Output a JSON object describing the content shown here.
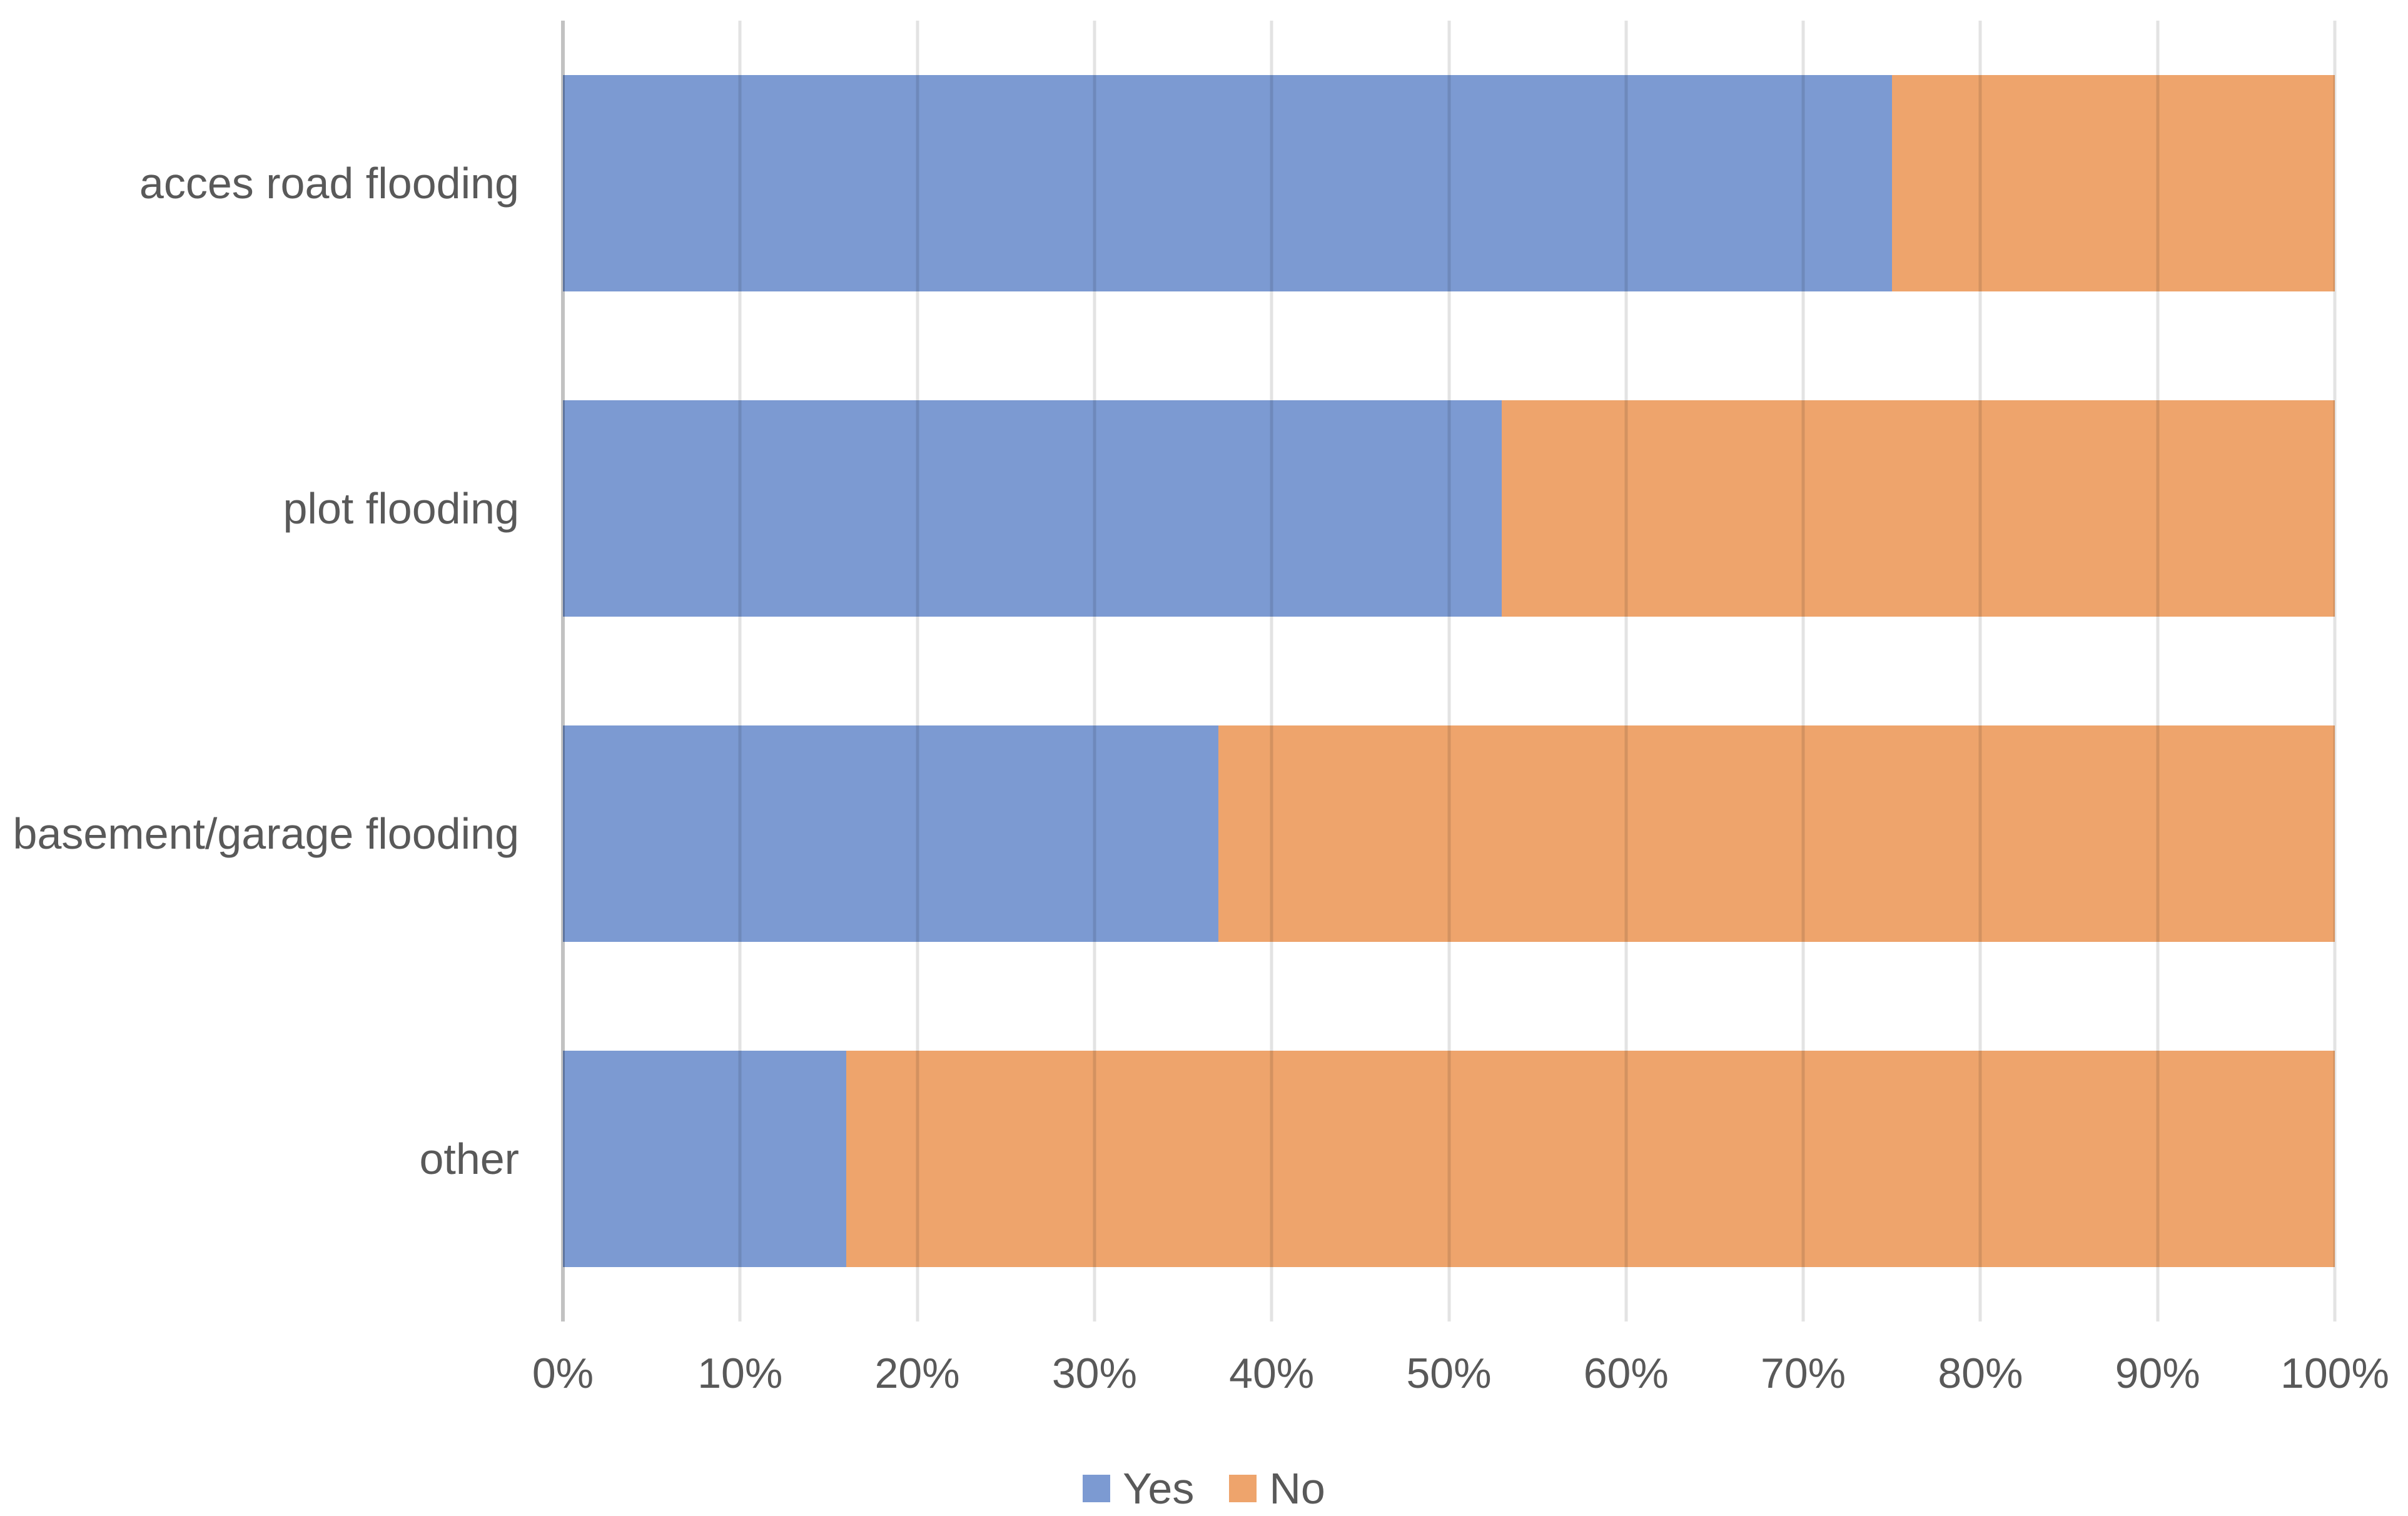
{
  "chart_data": {
    "type": "bar",
    "orientation": "horizontal",
    "stacked": true,
    "title": "",
    "xlabel": "",
    "ylabel": "",
    "unit": "percent",
    "categories": [
      "acces road flooding",
      "plot flooding",
      "basement/garage flooding",
      "other"
    ],
    "series": [
      {
        "name": "Yes",
        "color": "#7C9AD2",
        "values": [
          75,
          53,
          37,
          16
        ]
      },
      {
        "name": "No",
        "color": "#EEA46C",
        "values": [
          25,
          47,
          63,
          84
        ]
      }
    ],
    "x_axis": {
      "min": 0,
      "max": 100,
      "tick_step": 10,
      "tick_labels": [
        "0%",
        "10%",
        "20%",
        "30%",
        "40%",
        "50%",
        "60%",
        "70%",
        "80%",
        "90%",
        "100%"
      ]
    },
    "grid": true,
    "legend": {
      "position": "bottom",
      "entries": [
        "Yes",
        "No"
      ]
    },
    "colors": {
      "text": "#595959",
      "gridline": "rgba(0,0,0,0.11)",
      "axis_line": "rgba(0,0,0,0.24)",
      "background": "#FFFFFF"
    }
  }
}
